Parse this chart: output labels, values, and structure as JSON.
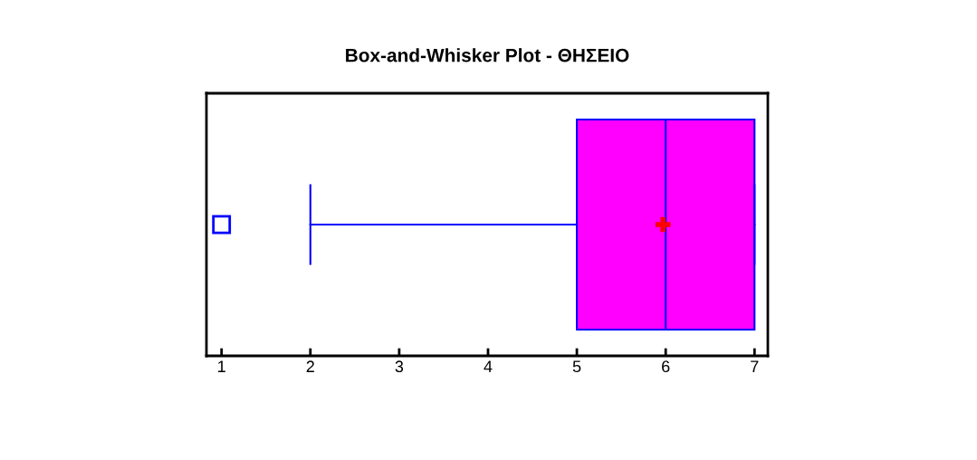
{
  "chart_data": {
    "type": "box",
    "title": "Box-and-Whisker Plot - ΘΗΣΕΙΟ",
    "orientation": "horizontal",
    "categories": [
      null
    ],
    "series": [
      {
        "color": "#ff00ff",
        "boxes": [
          {
            "low": 2,
            "q1": 5,
            "median": 6,
            "q3": 7,
            "high": 7,
            "mean": 5.97,
            "outliers": [
              1
            ]
          }
        ]
      }
    ],
    "xlim": [
      0.83,
      7.15
    ],
    "xticks": [
      1,
      2,
      3,
      4,
      5,
      6,
      7
    ],
    "tick_labels": "x",
    "grid": false
  }
}
